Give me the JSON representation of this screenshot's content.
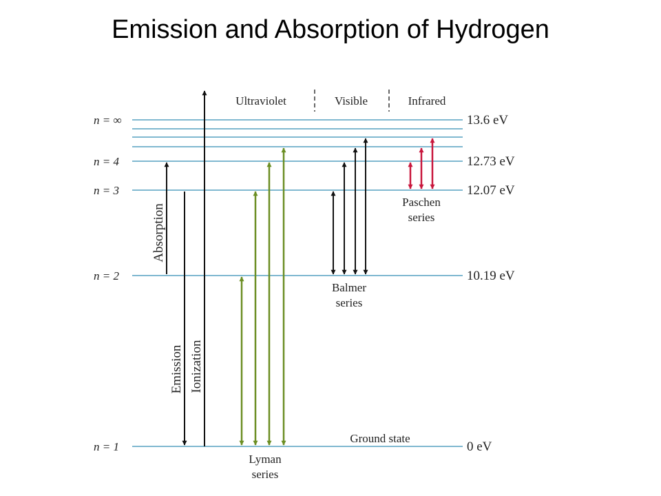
{
  "title": "Emission and Absorption of Hydrogen",
  "regions": [
    "Ultraviolet",
    "Visible",
    "Infrared"
  ],
  "levels": [
    {
      "n": "∞",
      "label": "n = ∞",
      "energy": 13.6,
      "ev_label": "13.6 eV"
    },
    {
      "n": "4",
      "label": "n = 4",
      "energy": 12.73,
      "ev_label": "12.73 eV"
    },
    {
      "n": "3",
      "label": "n = 3",
      "energy": 12.07,
      "ev_label": "12.07 eV"
    },
    {
      "n": "2",
      "label": "n = 2",
      "energy": 10.19,
      "ev_label": "10.19 eV"
    },
    {
      "n": "1",
      "label": "n = 1",
      "energy": 0,
      "ev_label": "0 eV"
    }
  ],
  "ground_state_label": "Ground state",
  "transitions": {
    "absorption": {
      "label": "Absorption",
      "from": "2",
      "to": "4"
    },
    "emission": {
      "label": "Emission",
      "from": "3",
      "to": "1"
    },
    "ionization": {
      "label": "Ionization",
      "from": "1",
      "to": "∞"
    }
  },
  "series": {
    "lyman": {
      "label_line1": "Lyman",
      "label_line2": "series",
      "lower": "1",
      "uppers": [
        "2",
        "3",
        "4",
        "5"
      ]
    },
    "balmer": {
      "label_line1": "Balmer",
      "label_line2": "series",
      "lower": "2",
      "uppers": [
        "3",
        "4",
        "5",
        "6"
      ]
    },
    "paschen": {
      "label_line1": "Paschen",
      "label_line2": "series",
      "lower": "3",
      "uppers": [
        "4",
        "5",
        "6"
      ]
    }
  },
  "colors": {
    "level_line": "#7fb8d0",
    "black_arrow": "#111111",
    "lyman": "#6b8e23",
    "paschen": "#c8163c"
  }
}
